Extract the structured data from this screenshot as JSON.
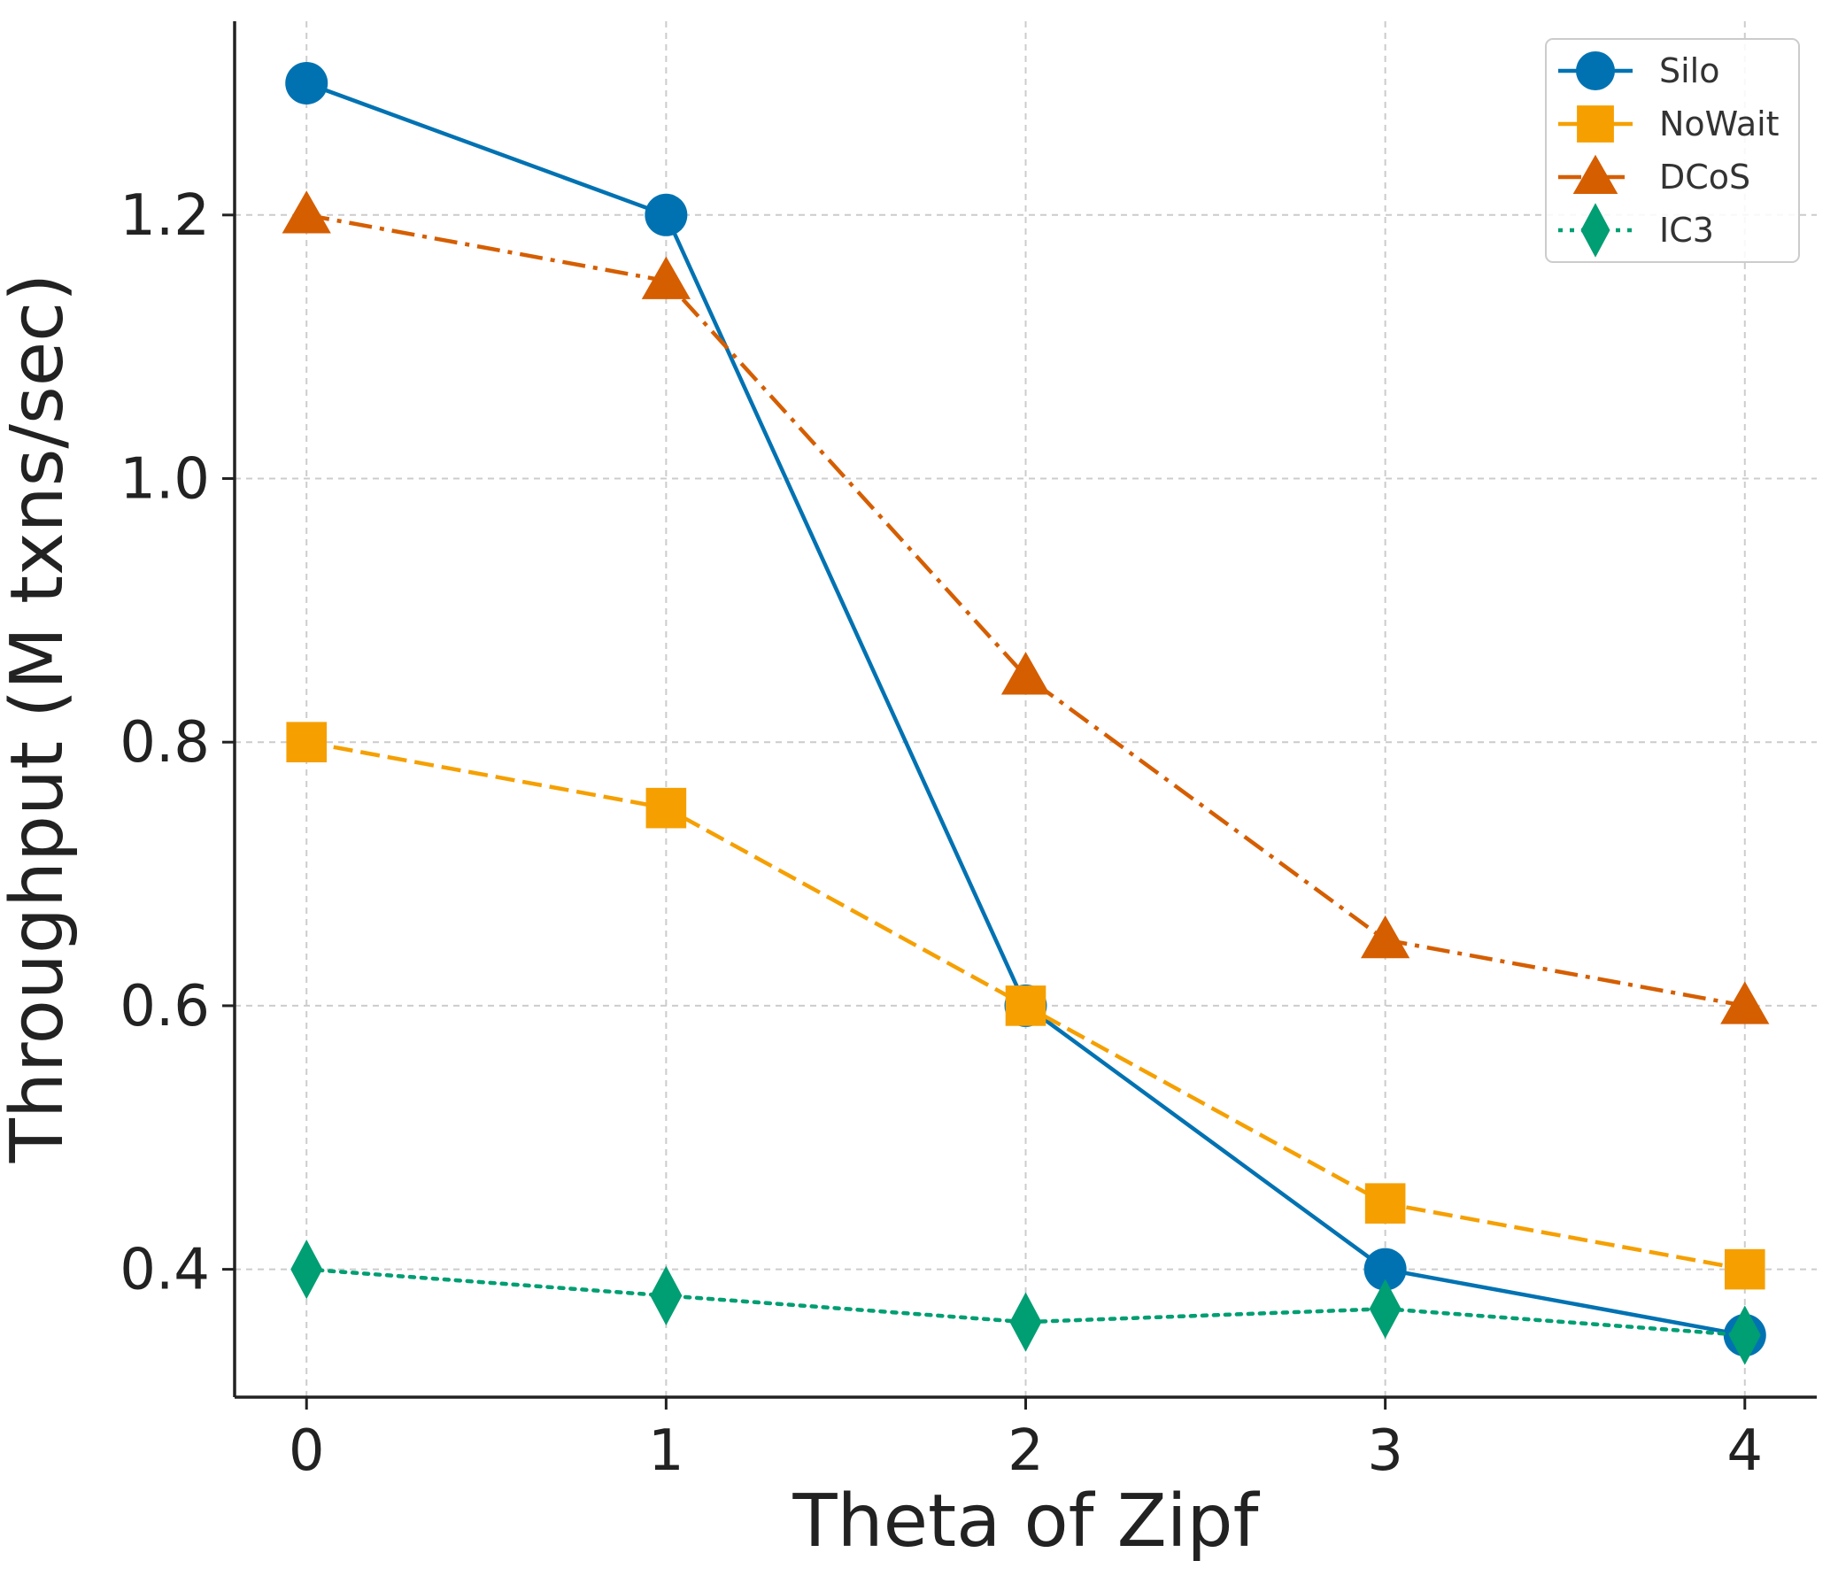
{
  "chart_data": {
    "type": "line",
    "title": "",
    "xlabel": "Theta of Zipf",
    "ylabel": "Throughput (M txns/sec)",
    "x": [
      0,
      1,
      2,
      3,
      4
    ],
    "xticks": [
      "0",
      "1",
      "2",
      "3",
      "4"
    ],
    "yticks": [
      "0.4",
      "0.6",
      "0.8",
      "1.0",
      "1.2"
    ],
    "ytick_values": [
      0.4,
      0.6,
      0.8,
      1.0,
      1.2
    ],
    "xlim": [
      -0.2,
      4.2
    ],
    "ylim": [
      0.303,
      1.347
    ],
    "grid": true,
    "legend_position": "top-right",
    "series": [
      {
        "name": "Silo",
        "values": [
          1.3,
          1.2,
          0.6,
          0.4,
          0.35
        ],
        "color": "#0072B2",
        "marker": "circle",
        "linestyle": "solid"
      },
      {
        "name": "NoWait",
        "values": [
          0.8,
          0.75,
          0.6,
          0.45,
          0.4
        ],
        "color": "#F5A000",
        "marker": "square",
        "linestyle": "dashed"
      },
      {
        "name": "DCoS",
        "values": [
          1.2,
          1.15,
          0.85,
          0.65,
          0.6
        ],
        "color": "#D55E00",
        "marker": "triangle",
        "linestyle": "dashdot"
      },
      {
        "name": "IC3",
        "values": [
          0.4,
          0.38,
          0.36,
          0.37,
          0.35
        ],
        "color": "#009E73",
        "marker": "diamond",
        "linestyle": "dotted"
      }
    ]
  }
}
